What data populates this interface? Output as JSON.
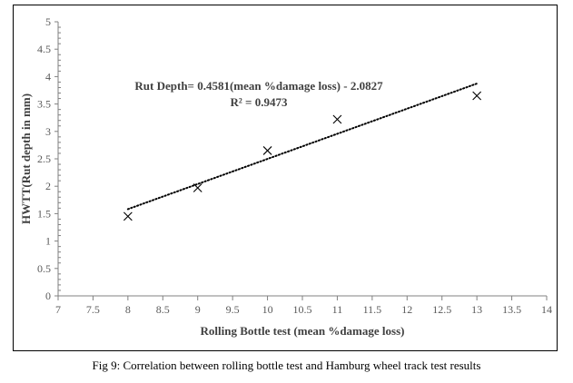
{
  "chart_data": {
    "type": "scatter",
    "title": "",
    "xlabel": "Rolling Bottle test (mean %damage loss)",
    "ylabel": "HWTT(Rut depth in mm)",
    "xlim": [
      7,
      14
    ],
    "ylim": [
      0,
      5
    ],
    "x_ticks": [
      "7",
      "7.5",
      "8",
      "8.5",
      "9",
      "9.5",
      "10",
      "10.5",
      "11",
      "11.5",
      "12",
      "12.5",
      "13",
      "13.5",
      "14"
    ],
    "y_ticks": [
      "0",
      "0.5",
      "1",
      "1.5",
      "2",
      "2.5",
      "3",
      "3.5",
      "4",
      "4.5",
      "5"
    ],
    "grid": false,
    "marker": "x",
    "points": [
      {
        "x": 8,
        "y": 1.45
      },
      {
        "x": 9,
        "y": 1.97
      },
      {
        "x": 10,
        "y": 2.65
      },
      {
        "x": 11,
        "y": 3.22
      },
      {
        "x": 13,
        "y": 3.65
      }
    ],
    "trendline": {
      "type": "linear",
      "style": "dotted",
      "slope": 0.4581,
      "intercept": -2.0827,
      "x_range": [
        8,
        13
      ],
      "equation_text": "Rut Depth= 0.4581(mean %damage loss) - 2.0827",
      "r2_text": "R² = 0.9473"
    }
  },
  "caption": "Fig 9: Correlation between rolling bottle test and Hamburg wheel track test results",
  "colors": {
    "marker": "#000000",
    "axis": "#808080",
    "trendline": "#000000"
  }
}
